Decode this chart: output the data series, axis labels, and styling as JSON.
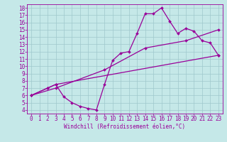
{
  "background_color": "#c5e8e8",
  "line_color": "#990099",
  "marker": "D",
  "marker_size": 2.0,
  "line_width": 0.9,
  "xlabel": "Windchill (Refroidissement éolien,°C)",
  "xlabel_fontsize": 5.5,
  "xlim": [
    -0.5,
    23.5
  ],
  "ylim": [
    3.5,
    18.5
  ],
  "xticks": [
    0,
    1,
    2,
    3,
    4,
    5,
    6,
    7,
    8,
    9,
    10,
    11,
    12,
    13,
    14,
    15,
    16,
    17,
    18,
    19,
    20,
    21,
    22,
    23
  ],
  "yticks": [
    4,
    5,
    6,
    7,
    8,
    9,
    10,
    11,
    12,
    13,
    14,
    15,
    16,
    17,
    18
  ],
  "tick_fontsize": 5.5,
  "curve1_x": [
    0,
    2,
    3,
    4,
    5,
    6,
    7,
    8,
    9,
    10,
    11,
    12,
    13,
    14,
    15,
    16,
    17,
    18,
    19,
    20,
    21,
    22,
    23
  ],
  "curve1_y": [
    6.0,
    7.0,
    7.5,
    5.8,
    5.0,
    4.5,
    4.2,
    4.0,
    7.5,
    10.8,
    11.8,
    12.0,
    14.5,
    17.2,
    17.2,
    18.0,
    16.2,
    14.5,
    15.2,
    14.8,
    13.5,
    13.2,
    11.5
  ],
  "curve2_x": [
    0,
    2,
    3,
    23
  ],
  "curve2_y": [
    6.0,
    7.0,
    7.5,
    11.5
  ],
  "curve3_x": [
    0,
    3,
    9,
    14,
    19,
    23
  ],
  "curve3_y": [
    6.0,
    7.0,
    9.5,
    12.5,
    13.5,
    15.0
  ],
  "grid_color": "#9fc8cc",
  "grid_lw": 0.5
}
